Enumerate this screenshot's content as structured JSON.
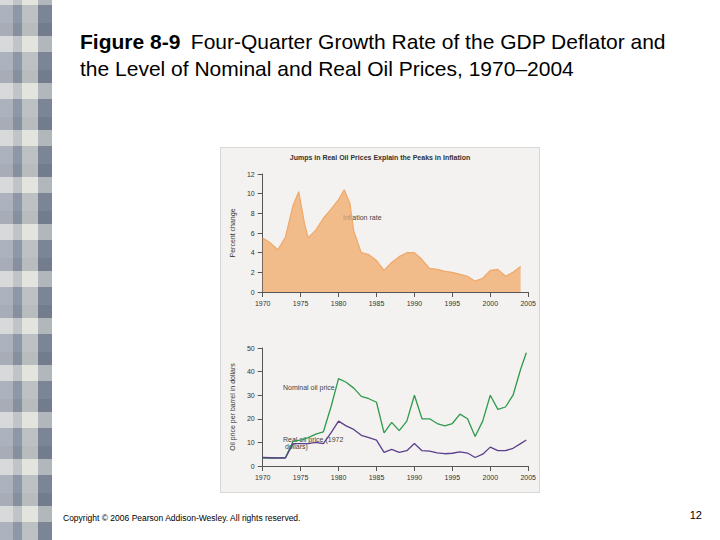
{
  "figure_label": "Figure 8-9",
  "title": "Four-Quarter Growth Rate of the GDP Deflator and the Level of Nominal and Real Oil Prices, 1970–2004",
  "copyright": "Copyright © 2006 Pearson Addison-Wesley. All rights reserved.",
  "page_number": "12",
  "chart_data": [
    {
      "type": "area",
      "title": "Jumps in Real Oil Prices Explain the Peaks in Inflation",
      "ylabel": "Percent change",
      "annotations": [
        "Inflation rate"
      ],
      "color": "#f0a868",
      "x": [
        1970,
        1971,
        1972,
        1973,
        1974,
        1974.75,
        1975.5,
        1976,
        1977,
        1978,
        1979,
        1980,
        1980.75,
        1981.5,
        1982,
        1983,
        1984,
        1985,
        1986,
        1987,
        1988,
        1989,
        1990,
        1991,
        1992,
        1993,
        1994,
        1995,
        1996,
        1997,
        1998,
        1999,
        2000,
        2001,
        2002,
        2003,
        2004
      ],
      "values": [
        5.5,
        5.0,
        4.3,
        5.6,
        8.8,
        10.2,
        7.0,
        5.5,
        6.3,
        7.5,
        8.4,
        9.4,
        10.4,
        9.0,
        6.2,
        4.0,
        3.8,
        3.2,
        2.2,
        3.0,
        3.6,
        4.0,
        4.0,
        3.3,
        2.4,
        2.3,
        2.1,
        2.0,
        1.8,
        1.6,
        1.1,
        1.4,
        2.2,
        2.3,
        1.6,
        2.0,
        2.6
      ],
      "xlim": [
        1970,
        2005
      ],
      "xticks": [
        1970,
        1975,
        1980,
        1985,
        1990,
        1995,
        2000,
        2005
      ],
      "ylim": [
        0,
        12
      ],
      "yticks": [
        0,
        2,
        4,
        6,
        8,
        10,
        12
      ]
    },
    {
      "type": "line",
      "ylabel": "Oil price per barrel in dollars",
      "x": [
        1970,
        1971,
        1972,
        1973,
        1974,
        1975,
        1976,
        1977,
        1978,
        1979,
        1980,
        1981,
        1982,
        1983,
        1984,
        1985,
        1986,
        1987,
        1988,
        1989,
        1990,
        1991,
        1992,
        1993,
        1994,
        1995,
        1996,
        1997,
        1998,
        1999,
        2000,
        2001,
        2002,
        2003,
        2004,
        2004.75
      ],
      "series": [
        {
          "name": "Nominal oil price",
          "color": "#2e9a4a",
          "values": [
            3.4,
            3.4,
            3.4,
            3.6,
            10.5,
            11,
            12,
            13.5,
            14.5,
            25,
            37,
            35.5,
            33,
            29.5,
            28.5,
            27,
            14,
            18.5,
            15,
            19,
            30,
            20,
            20,
            18,
            17,
            18,
            22,
            20,
            12.5,
            19,
            30,
            24,
            25,
            30,
            41,
            48
          ]
        },
        {
          "name": "Real oil price (1972 dollars)",
          "color": "#5b3f8c",
          "values": [
            3.6,
            3.5,
            3.4,
            3.4,
            9.5,
            9.5,
            9.5,
            10,
            9.5,
            14,
            19,
            17,
            15.5,
            13,
            12,
            11,
            5.8,
            7,
            5.8,
            6.5,
            9.5,
            6.5,
            6.3,
            5.6,
            5.2,
            5.4,
            6,
            5.5,
            3.6,
            5,
            8,
            6.5,
            6.5,
            7.5,
            9.5,
            11
          ]
        }
      ],
      "xlim": [
        1970,
        2005
      ],
      "xticks": [
        1970,
        1975,
        1980,
        1985,
        1990,
        1995,
        2000,
        2005
      ],
      "ylim": [
        0,
        50
      ],
      "yticks": [
        0,
        10,
        20,
        30,
        40,
        50
      ]
    }
  ]
}
